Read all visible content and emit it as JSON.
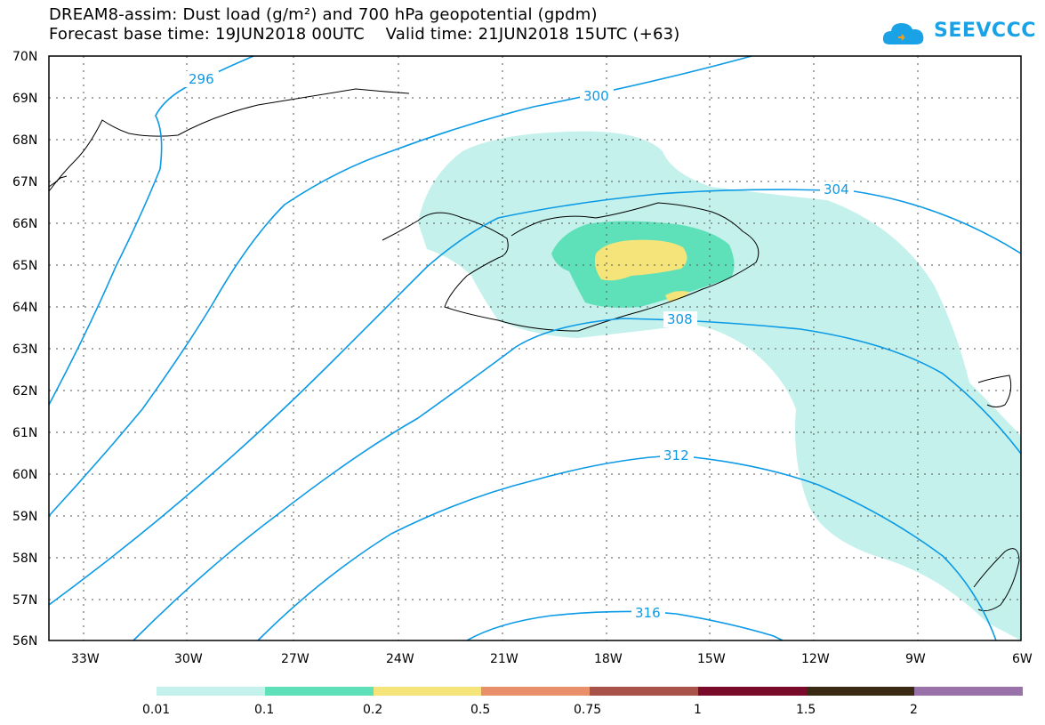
{
  "title_line1": "DREAM8-assim: Dust load (g/m²) and 700 hPa geopotential (gpdm)",
  "title_line2": "Forecast base time: 19JUN2018 00UTC    Valid time: 21JUN2018 15UTC (+63)",
  "logo_text": "SEEVCCC",
  "lat_labels": [
    "70N",
    "69N",
    "68N",
    "67N",
    "66N",
    "65N",
    "64N",
    "63N",
    "62N",
    "61N",
    "60N",
    "59N",
    "58N",
    "57N",
    "56N"
  ],
  "lon_labels": [
    "33W",
    "30W",
    "27W",
    "24W",
    "21W",
    "18W",
    "15W",
    "12W",
    "9W",
    "6W"
  ],
  "contour_labels": [
    "296",
    "300",
    "304",
    "308",
    "312",
    "316"
  ],
  "colorbar": {
    "labels": [
      "0.01",
      "0.1",
      "0.2",
      "0.5",
      "0.75",
      "1",
      "1.5",
      "2"
    ],
    "colors": [
      "#c4f1ec",
      "#5ee0b8",
      "#f4e47a",
      "#e9906a",
      "#a8524a",
      "#7a0a2a",
      "#3a2a14",
      "#9a72aa"
    ]
  },
  "colors": {
    "contour": "#0a9ae6",
    "dust_low": "#c4f1ec",
    "dust_mid": "#5ee0b8",
    "dust_high": "#f4e47a"
  }
}
